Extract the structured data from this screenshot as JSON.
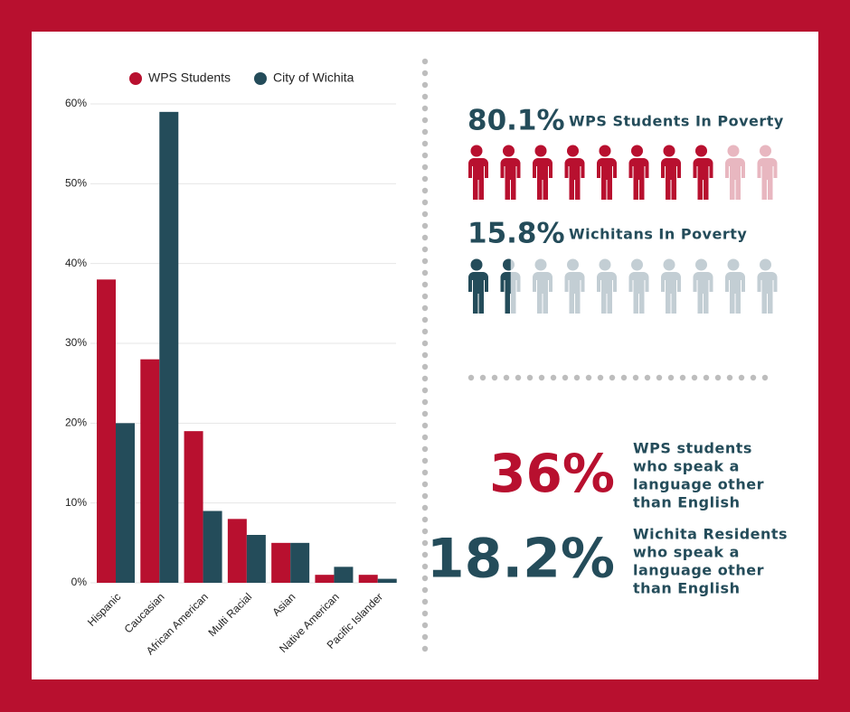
{
  "chart_data": {
    "type": "bar",
    "categories": [
      "Hispanic",
      "Caucasian",
      "African American",
      "Multi Racial",
      "Asian",
      "Native American",
      "Pacific Islander"
    ],
    "series": [
      {
        "name": "WPS Students",
        "color": "#b8102f",
        "values": [
          38,
          28,
          19,
          8,
          5,
          1,
          1
        ]
      },
      {
        "name": "City of Wichita",
        "color": "#244c5a",
        "values": [
          20,
          59,
          9,
          6,
          5,
          2,
          0.5
        ]
      }
    ],
    "ylim": [
      0,
      60
    ],
    "yticks": [
      {
        "value": 0,
        "label": "0%"
      },
      {
        "value": 10,
        "label": "10%"
      },
      {
        "value": 20,
        "label": "20%"
      },
      {
        "value": 30,
        "label": "30%"
      },
      {
        "value": 40,
        "label": "40%"
      },
      {
        "value": 50,
        "label": "50%"
      },
      {
        "value": 60,
        "label": "60%"
      }
    ],
    "grid": true,
    "legend": "top"
  },
  "poverty": [
    {
      "value": 80.1,
      "value_label": "80.1%",
      "text": "WPS Students In Poverty",
      "color": "#b8102f",
      "faded_color": "#e8b7c0"
    },
    {
      "value": 15.8,
      "value_label": "15.8%",
      "text": "Wichitans In Poverty",
      "color": "#244c5a",
      "faded_color": "#c3ced4"
    }
  ],
  "language": [
    {
      "value": 36,
      "value_label": "36%",
      "color": "#b8102f",
      "lines": [
        "WPS students",
        "who speak a",
        "language other",
        "than English"
      ]
    },
    {
      "value": 18.2,
      "value_label": "18.2%",
      "color": "#244c5a",
      "lines": [
        "Wichita Residents",
        "who speak a",
        "language other",
        "than English"
      ]
    }
  ]
}
